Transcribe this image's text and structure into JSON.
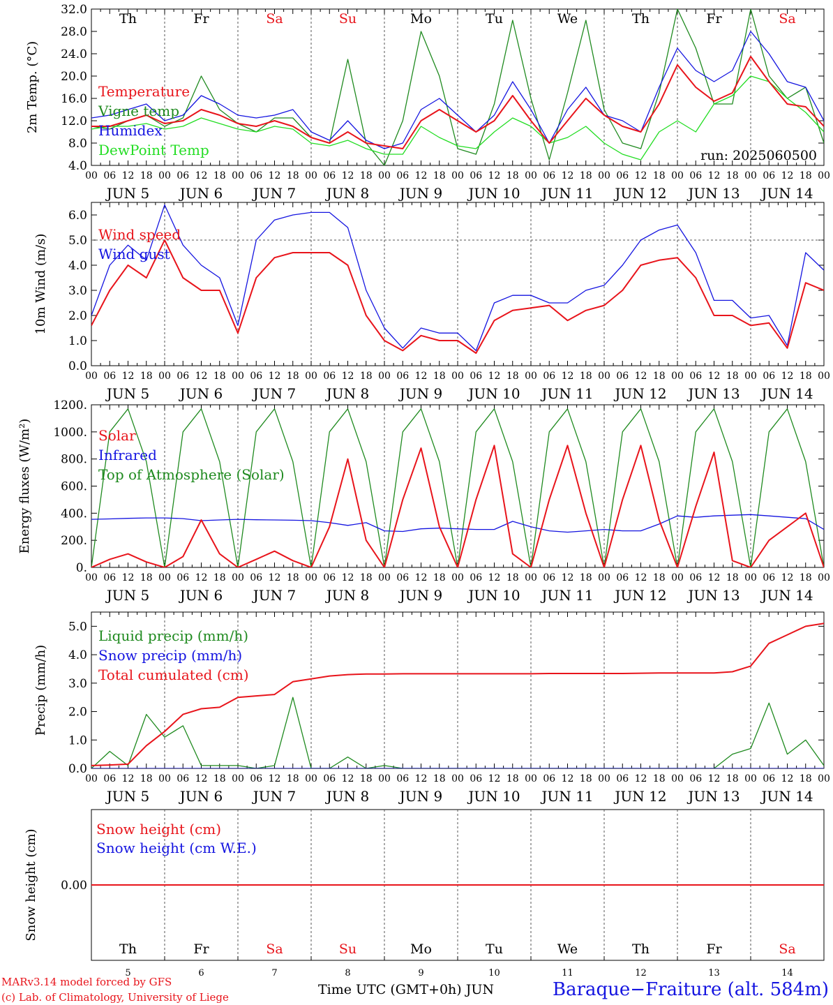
{
  "footer": {
    "credit_line1": "MARv3.14 model forced by GFS",
    "credit_line2": "(c) Lab. of Climatology, University of Liege",
    "time_label": "Time UTC (GMT+0h) JUN",
    "station": "Baraque−Fraiture (alt. 584m)"
  },
  "colors": {
    "red": "#e8141b",
    "green": "#1f8a1f",
    "blue": "#1414e0",
    "lime": "#22dd22",
    "grey": "#444444"
  },
  "chart_data": [
    {
      "type": "line",
      "ylabel": "2m Temp. (°C)",
      "ylim": [
        4,
        32
      ],
      "yticks": [
        "4.0",
        "8.0",
        "12.0",
        "16.0",
        "20.0",
        "24.0",
        "28.0",
        "32.0"
      ],
      "annotation": "run: 2025060500",
      "day_names": [
        {
          "label": "Th",
          "weekend": false
        },
        {
          "label": "Fr",
          "weekend": false
        },
        {
          "label": "Sa",
          "weekend": true
        },
        {
          "label": "Su",
          "weekend": true
        },
        {
          "label": "Mo",
          "weekend": false
        },
        {
          "label": "Tu",
          "weekend": false
        },
        {
          "label": "We",
          "weekend": false
        },
        {
          "label": "Th",
          "weekend": false
        },
        {
          "label": "Fr",
          "weekend": false
        },
        {
          "label": "Sa",
          "weekend": true
        }
      ],
      "hour_ticks": [
        "00",
        "06",
        "12",
        "18"
      ],
      "day_labels": [
        "JUN 5",
        "JUN 6",
        "JUN 7",
        "JUN 8",
        "JUN 9",
        "JUN 10",
        "JUN 11",
        "JUN 12",
        "JUN 13",
        "JUN 14"
      ],
      "x_hours": [
        0,
        6,
        12,
        18,
        24,
        30,
        36,
        42,
        48,
        54,
        60,
        66,
        72,
        78,
        84,
        90,
        96,
        102,
        108,
        114,
        120,
        126,
        132,
        138,
        144,
        150,
        156,
        162,
        168,
        174,
        180,
        186,
        192,
        198,
        204,
        210,
        216,
        222,
        228,
        234,
        240
      ],
      "series": [
        {
          "name": "Temperature",
          "color": "red",
          "y": [
            11,
            11,
            12,
            13,
            11.5,
            12,
            14,
            13,
            11.5,
            11,
            12,
            11,
            9,
            8,
            10,
            8,
            7.5,
            7,
            12,
            14,
            12,
            10,
            12,
            16.5,
            12,
            8,
            12,
            16,
            13,
            11,
            10,
            15,
            22,
            18,
            15.5,
            17,
            23.5,
            19,
            15,
            14.5,
            11
          ]
        },
        {
          "name": "Vigne temp",
          "color": "green",
          "y": [
            11,
            10.5,
            12,
            13,
            11,
            12.5,
            20,
            14,
            11.5,
            10,
            12.5,
            12.5,
            9,
            8,
            23,
            8,
            4,
            12,
            28,
            20,
            7,
            6,
            15,
            30,
            16,
            5,
            17,
            30,
            14,
            8,
            7,
            17,
            32,
            25,
            15,
            15,
            32,
            20,
            16,
            18,
            8
          ]
        },
        {
          "name": "Humidex",
          "color": "blue",
          "y": [
            12.5,
            13,
            14,
            15,
            12,
            13,
            16.5,
            15,
            13,
            12.5,
            13,
            14,
            10,
            8.5,
            12,
            8.5,
            7,
            8,
            14,
            16,
            13,
            10,
            13,
            19,
            14,
            8,
            14,
            18,
            13,
            12,
            10,
            18,
            25,
            21,
            19,
            21,
            28,
            24,
            19,
            18,
            12
          ]
        },
        {
          "name": "DewPoint Temp",
          "color": "lime",
          "y": [
            10.5,
            11,
            11,
            11.5,
            10.5,
            11,
            12.5,
            11.5,
            10.5,
            10,
            11,
            10.5,
            8,
            7.5,
            8.5,
            7,
            6,
            6,
            11,
            9,
            7.5,
            7,
            10,
            12.5,
            11,
            8,
            9,
            11,
            8,
            6,
            5,
            10,
            12,
            10,
            15,
            16.5,
            20,
            19,
            16,
            13.5,
            10
          ]
        }
      ]
    },
    {
      "type": "line",
      "ylabel": "10m Wind (m/s)",
      "ylim": [
        0,
        6.5
      ],
      "yticks": [
        "0.0",
        "1.0",
        "2.0",
        "3.0",
        "4.0",
        "5.0",
        "6.0"
      ],
      "ref_line": 5.0,
      "hour_ticks": [
        "00",
        "06",
        "12",
        "18"
      ],
      "day_labels": [
        "JUN 5",
        "JUN 6",
        "JUN 7",
        "JUN 8",
        "JUN 9",
        "JUN 10",
        "JUN 11",
        "JUN 12",
        "JUN 13",
        "JUN 14"
      ],
      "x_hours": [
        0,
        6,
        12,
        18,
        24,
        30,
        36,
        42,
        48,
        54,
        60,
        66,
        72,
        78,
        84,
        90,
        96,
        102,
        108,
        114,
        120,
        126,
        132,
        138,
        144,
        150,
        156,
        162,
        168,
        174,
        180,
        186,
        192,
        198,
        204,
        210,
        216,
        222,
        228,
        234,
        240
      ],
      "series": [
        {
          "name": "Wind speed",
          "color": "red",
          "y": [
            1.6,
            3,
            4,
            3.5,
            5,
            3.5,
            3,
            3,
            1.3,
            3.5,
            4.3,
            4.5,
            4.5,
            4.5,
            4,
            2,
            1,
            0.6,
            1.2,
            1,
            1,
            0.5,
            1.8,
            2.2,
            2.3,
            2.4,
            1.8,
            2.2,
            2.4,
            3,
            4,
            4.2,
            4.3,
            3.5,
            2,
            2,
            1.6,
            1.7,
            0.7,
            3.3,
            3
          ]
        },
        {
          "name": "Wind gust",
          "color": "blue",
          "y": [
            2,
            4,
            4.8,
            4.2,
            6.4,
            4.8,
            4,
            3.5,
            1.6,
            5,
            5.8,
            6,
            6.1,
            6.1,
            5.5,
            3,
            1.5,
            0.7,
            1.5,
            1.3,
            1.3,
            0.6,
            2.5,
            2.8,
            2.8,
            2.5,
            2.5,
            3,
            3.2,
            4,
            5,
            5.4,
            5.6,
            4.5,
            2.6,
            2.6,
            1.9,
            2,
            0.8,
            4.5,
            3.8
          ]
        }
      ]
    },
    {
      "type": "line",
      "ylabel": "Energy fluxes (W/m²)",
      "ylim": [
        0,
        1200
      ],
      "yticks": [
        "0.",
        "200.",
        "400.",
        "600.",
        "800.",
        "1000.",
        "1200."
      ],
      "hour_ticks": [
        "00",
        "06",
        "12",
        "18"
      ],
      "day_labels": [
        "JUN 5",
        "JUN 6",
        "JUN 7",
        "JUN 8",
        "JUN 9",
        "JUN 10",
        "JUN 11",
        "JUN 12",
        "JUN 13",
        "JUN 14"
      ],
      "x_hours": [
        0,
        6,
        12,
        18,
        24,
        30,
        36,
        42,
        48,
        54,
        60,
        66,
        72,
        78,
        84,
        90,
        96,
        102,
        108,
        114,
        120,
        126,
        132,
        138,
        144,
        150,
        156,
        162,
        168,
        174,
        180,
        186,
        192,
        198,
        204,
        210,
        216,
        222,
        228,
        234,
        240
      ],
      "series": [
        {
          "name": "Solar",
          "color": "red",
          "y": [
            0,
            60,
            100,
            40,
            0,
            80,
            350,
            100,
            0,
            60,
            120,
            50,
            0,
            300,
            800,
            200,
            0,
            500,
            880,
            300,
            0,
            500,
            900,
            100,
            0,
            500,
            900,
            400,
            0,
            500,
            900,
            350,
            0,
            450,
            850,
            50,
            0,
            200,
            300,
            400,
            0
          ]
        },
        {
          "name": "Infrared",
          "color": "blue",
          "y": [
            355,
            358,
            362,
            365,
            365,
            360,
            345,
            350,
            355,
            352,
            350,
            348,
            345,
            330,
            310,
            330,
            270,
            265,
            285,
            290,
            285,
            280,
            280,
            340,
            300,
            270,
            260,
            270,
            280,
            270,
            270,
            320,
            380,
            370,
            380,
            385,
            390,
            380,
            370,
            360,
            280
          ]
        },
        {
          "name": "Top of Atmosphere (Solar)",
          "color": "green",
          "y": [
            0,
            1000,
            1170,
            780,
            0,
            1000,
            1170,
            780,
            0,
            1000,
            1170,
            780,
            0,
            1000,
            1170,
            780,
            0,
            1000,
            1170,
            780,
            0,
            1000,
            1170,
            780,
            0,
            1000,
            1170,
            780,
            0,
            1000,
            1170,
            780,
            0,
            1000,
            1170,
            780,
            0,
            1000,
            1170,
            780,
            0
          ]
        }
      ]
    },
    {
      "type": "line",
      "ylabel": "Precip (mm/h)",
      "ylim": [
        0,
        5.5
      ],
      "yticks": [
        "0.0",
        "1.0",
        "2.0",
        "3.0",
        "4.0",
        "5.0"
      ],
      "hour_ticks": [
        "00",
        "06",
        "12",
        "18"
      ],
      "day_labels": [
        "JUN 5",
        "JUN 6",
        "JUN 7",
        "JUN 8",
        "JUN 9",
        "JUN 10",
        "JUN 11",
        "JUN 12",
        "JUN 13",
        "JUN 14"
      ],
      "x_hours": [
        0,
        6,
        12,
        18,
        24,
        30,
        36,
        42,
        48,
        54,
        60,
        66,
        72,
        78,
        84,
        90,
        96,
        102,
        108,
        114,
        120,
        126,
        132,
        138,
        144,
        150,
        156,
        162,
        168,
        174,
        180,
        186,
        192,
        198,
        204,
        210,
        216,
        222,
        228,
        234,
        240
      ],
      "series": [
        {
          "name": "Liquid precip (mm/h)",
          "color": "green",
          "y": [
            0,
            0.6,
            0.1,
            1.9,
            1.1,
            1.5,
            0.1,
            0.1,
            0.1,
            0,
            0.1,
            2.5,
            0,
            0,
            0.4,
            0,
            0.1,
            0,
            0,
            0,
            0,
            0,
            0,
            0,
            0,
            0,
            0,
            0,
            0,
            0,
            0,
            0,
            0,
            0,
            0,
            0.5,
            0.7,
            2.3,
            0.5,
            1,
            0.1
          ]
        },
        {
          "name": "Snow precip (mm/h)",
          "color": "blue",
          "y": [
            0,
            0,
            0,
            0,
            0,
            0,
            0,
            0,
            0,
            0,
            0,
            0,
            0,
            0,
            0,
            0,
            0,
            0,
            0,
            0,
            0,
            0,
            0,
            0,
            0,
            0,
            0,
            0,
            0,
            0,
            0,
            0,
            0,
            0,
            0,
            0,
            0,
            0,
            0,
            0,
            0
          ]
        },
        {
          "name": "Total cumulated (cm)",
          "color": "red",
          "y": [
            0.1,
            0.12,
            0.15,
            0.8,
            1.3,
            1.9,
            2.1,
            2.15,
            2.5,
            2.55,
            2.6,
            3.05,
            3.15,
            3.25,
            3.3,
            3.32,
            3.32,
            3.33,
            3.33,
            3.33,
            3.33,
            3.33,
            3.33,
            3.33,
            3.33,
            3.34,
            3.34,
            3.34,
            3.34,
            3.34,
            3.35,
            3.36,
            3.36,
            3.36,
            3.36,
            3.4,
            3.6,
            4.4,
            4.7,
            5,
            5.1
          ]
        }
      ]
    },
    {
      "type": "line",
      "ylabel": "Snow height (cm)",
      "ylim": [
        -1,
        1
      ],
      "yticks": [
        "0.00"
      ],
      "day_names": [
        {
          "label": "Th",
          "weekend": false
        },
        {
          "label": "Fr",
          "weekend": false
        },
        {
          "label": "Sa",
          "weekend": true
        },
        {
          "label": "Su",
          "weekend": true
        },
        {
          "label": "Mo",
          "weekend": false
        },
        {
          "label": "Tu",
          "weekend": false
        },
        {
          "label": "We",
          "weekend": false
        },
        {
          "label": "Th",
          "weekend": false
        },
        {
          "label": "Fr",
          "weekend": false
        },
        {
          "label": "Sa",
          "weekend": true
        }
      ],
      "day_numbers": [
        "5",
        "6",
        "7",
        "8",
        "9",
        "10",
        "11",
        "12",
        "13",
        "14"
      ],
      "x_hours": [
        0,
        240
      ],
      "series": [
        {
          "name": "Snow height (cm)",
          "color": "red",
          "y": [
            0,
            0
          ]
        },
        {
          "name": "Snow height (cm W.E.)",
          "color": "blue",
          "y": [
            0,
            0
          ]
        }
      ]
    }
  ]
}
